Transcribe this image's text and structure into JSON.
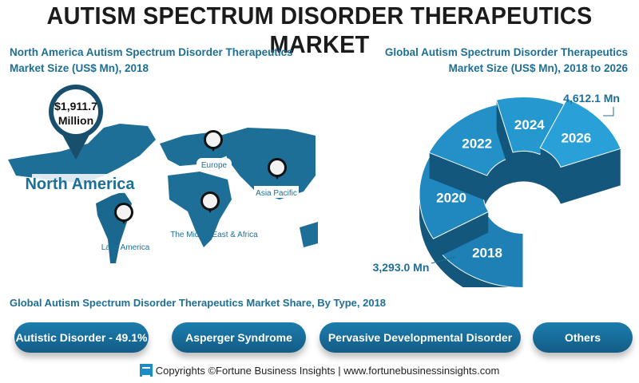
{
  "title": "AUTISM SPECTRUM DISORDER THERAPEUTICS MARKET",
  "left_panel": {
    "title_line1": "North America Autism Spectrum Disorder Therapeutics",
    "title_line2": "Market Size (US$ Mn), 2018",
    "highlight_value": "$1,911.7",
    "highlight_unit": "Million",
    "highlight_region": "North America",
    "regions": [
      "Europe",
      "Asia Pacific",
      "The Middle East & Africa",
      "Latin America"
    ]
  },
  "right_panel": {
    "title_line1": "Global Autism Spectrum Disorder Therapeutics",
    "title_line2": "Market Size (US$ Mn), 2018 to 2026",
    "years": [
      "2018",
      "2020",
      "2022",
      "2024",
      "2026"
    ],
    "start_value": "3,293.0 Mn",
    "end_value": "4,612.1 Mn"
  },
  "share": {
    "title": "Global Autism Spectrum Disorder Therapeutics Market Share, By Type, 2018",
    "types": [
      "Autistic Disorder - 49.1%",
      "Asperger Syndrome",
      "Pervasive Developmental Disorder",
      "Others"
    ]
  },
  "footer": {
    "text": "Copyrights ©Fortune Business Insights | www.fortunebusinessinsights.com"
  },
  "colors": {
    "primary": "#1e6f95",
    "map": "#1d6f98",
    "pill": "#1a75a5"
  }
}
